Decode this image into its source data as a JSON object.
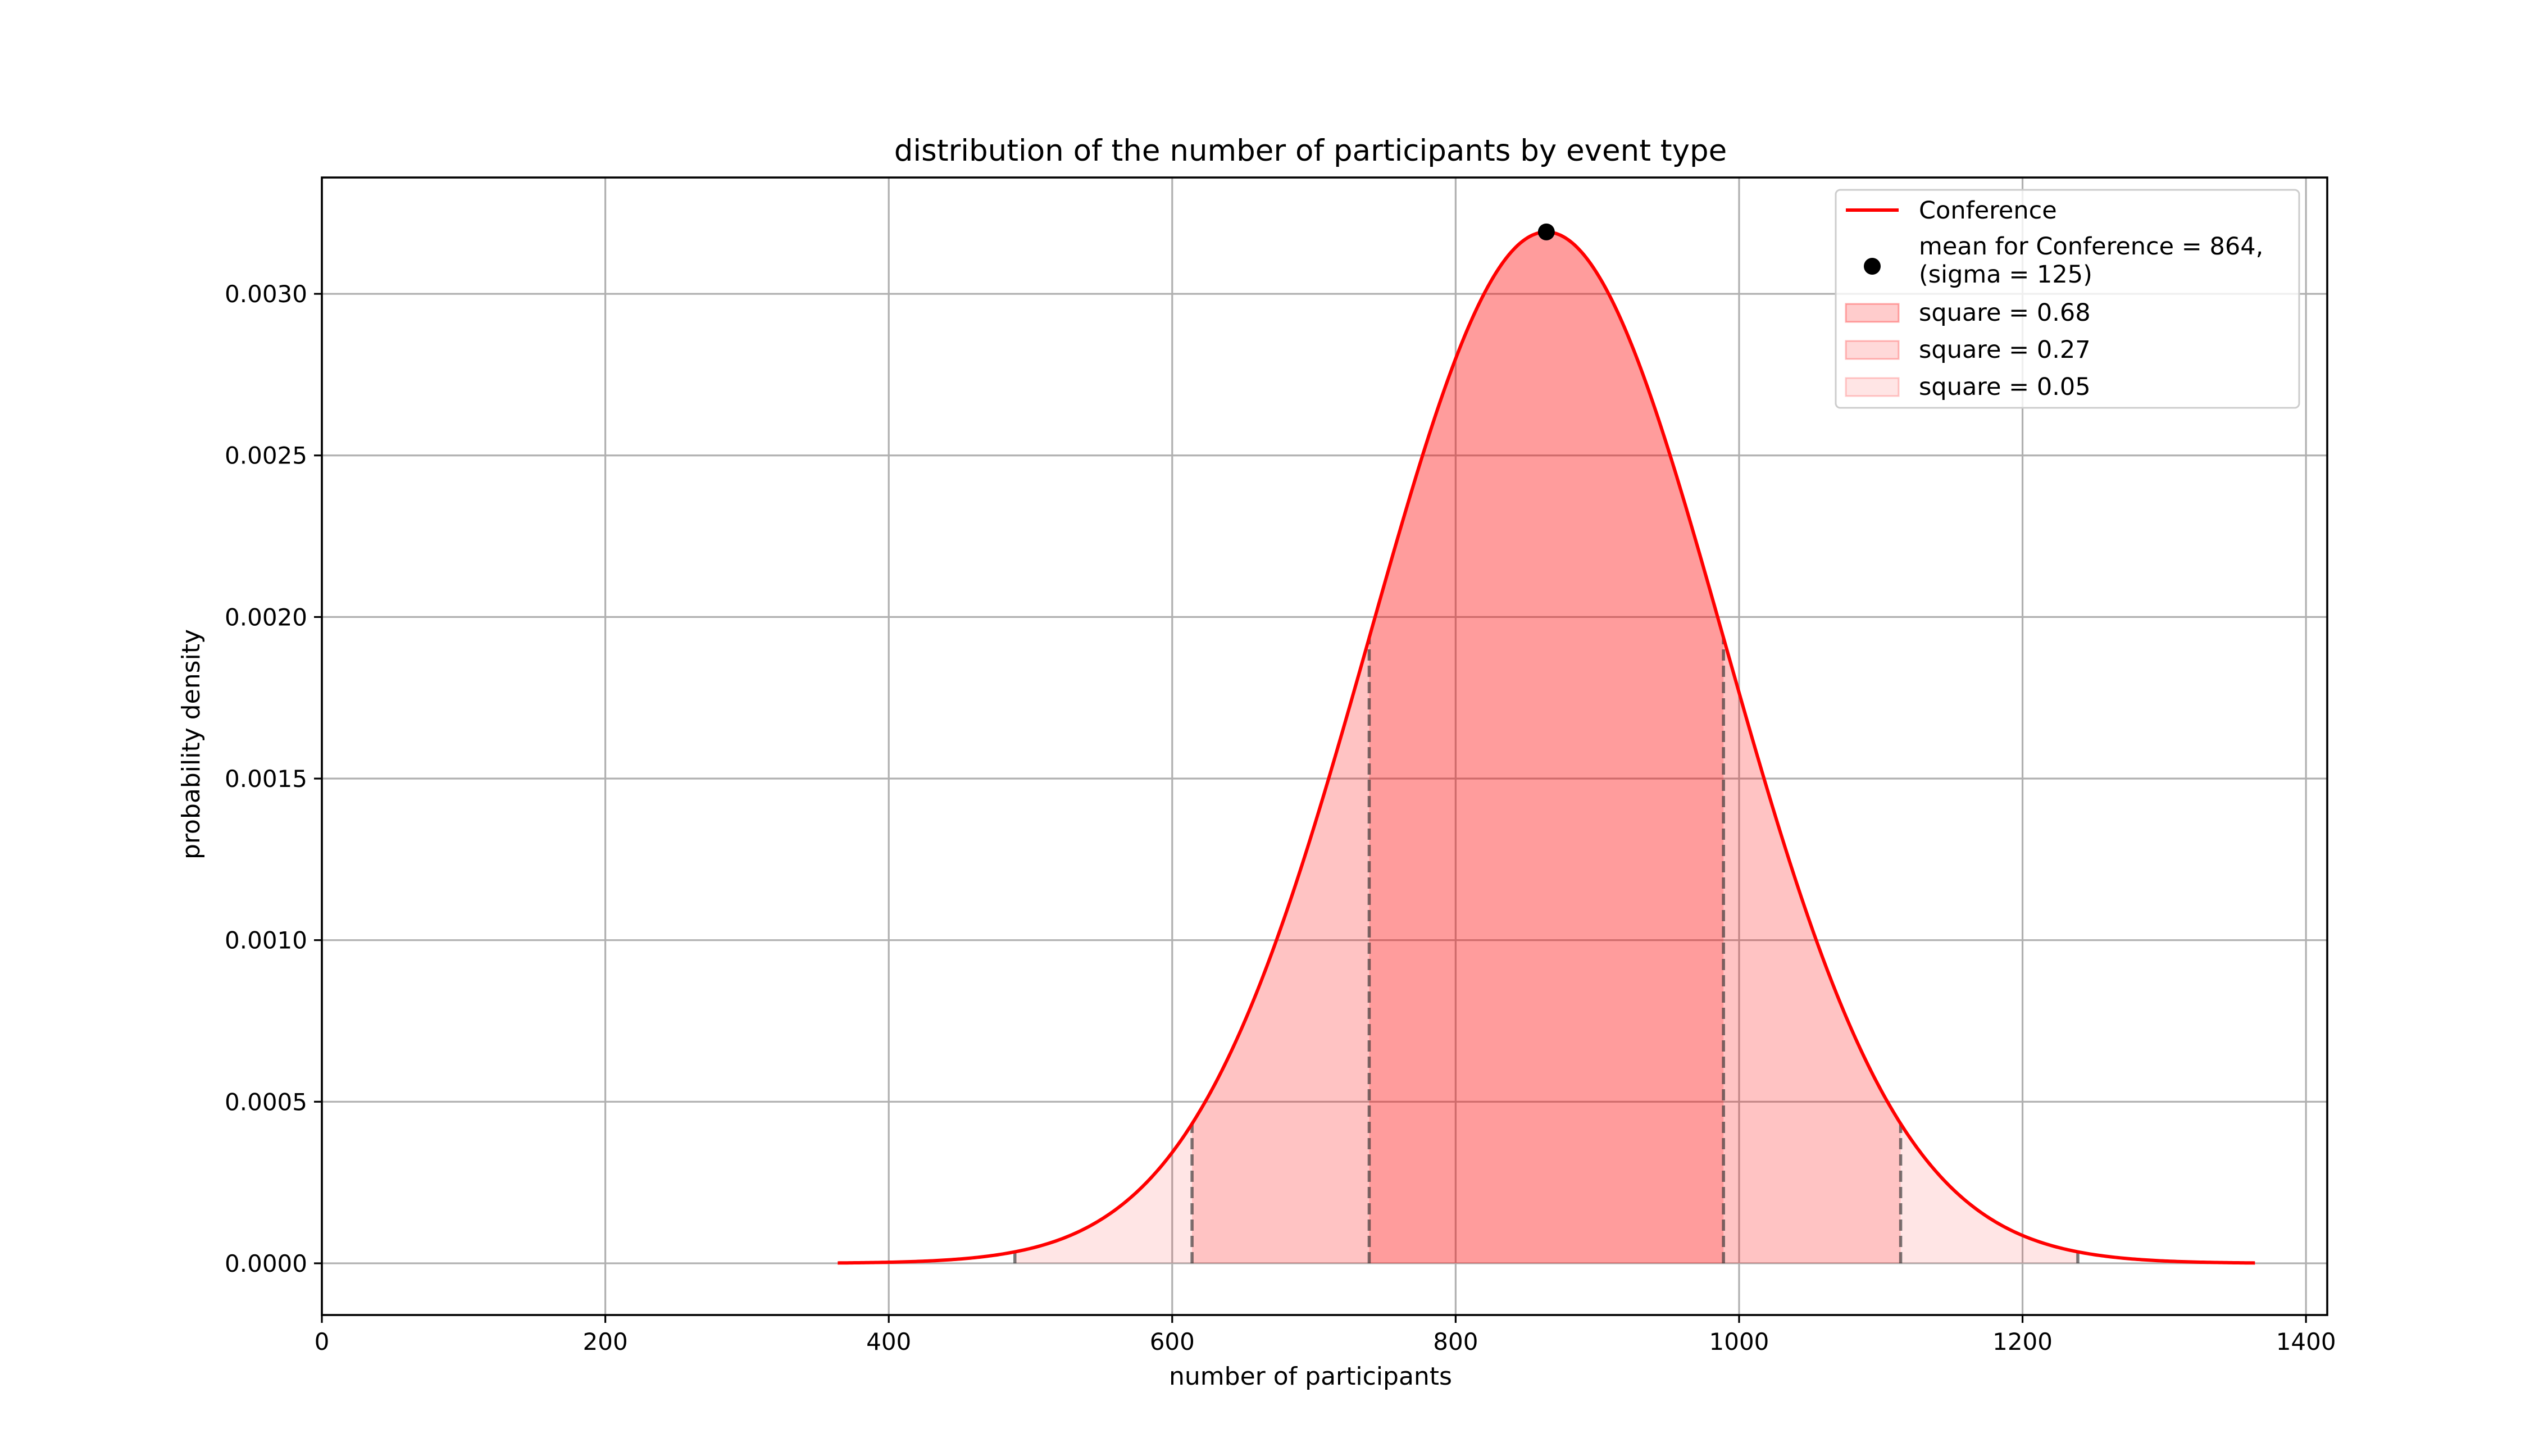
{
  "chart_data": {
    "type": "area",
    "title": "distribution of the number of participants by event type",
    "xlabel": "number of participants",
    "ylabel": "probability density",
    "xlim": [
      0,
      1415
    ],
    "ylim": [
      -0.00016,
      0.00336
    ],
    "xticks": [
      0,
      200,
      400,
      600,
      800,
      1000,
      1200,
      1400
    ],
    "xtick_labels": [
      "0",
      "200",
      "400",
      "600",
      "800",
      "1000",
      "1200",
      "1400"
    ],
    "yticks": [
      0,
      0.0005,
      0.001,
      0.0015,
      0.002,
      0.0025,
      0.003
    ],
    "ytick_labels": [
      "0.0000",
      "0.0005",
      "0.0010",
      "0.0015",
      "0.0020",
      "0.0025",
      "0.0030"
    ],
    "grid": true,
    "legend_position": "top-right",
    "series": [
      {
        "name": "Conference",
        "kind": "normal-pdf",
        "mean": 864,
        "sigma": 125,
        "x_range": [
          364,
          1364
        ],
        "color": "#ff0000"
      }
    ],
    "mean_point": {
      "x": 864,
      "label": "mean for Conference = 864,\n(sigma = 125)"
    },
    "bands": [
      {
        "label": "square = 0.68",
        "from": 739,
        "to": 989,
        "color": "#ff0000",
        "opacity": 0.2
      },
      {
        "label": "square = 0.27",
        "from": 614,
        "to": 1114,
        "color": "#ff0000",
        "opacity": 0.15
      },
      {
        "label": "square = 0.05",
        "from": 489,
        "to": 1239,
        "color": "#ff0000",
        "opacity": 0.1
      }
    ],
    "boundary_lines": [
      489,
      614,
      739,
      989,
      1114,
      1239
    ],
    "legend": [
      {
        "label": "Conference",
        "kind": "line"
      },
      {
        "label": "mean for Conference = 864,\n(sigma = 125)",
        "kind": "marker"
      },
      {
        "label": "square = 0.68",
        "kind": "patch",
        "band": 0
      },
      {
        "label": "square = 0.27",
        "kind": "patch",
        "band": 1
      },
      {
        "label": "square = 0.05",
        "kind": "patch",
        "band": 2
      }
    ]
  }
}
